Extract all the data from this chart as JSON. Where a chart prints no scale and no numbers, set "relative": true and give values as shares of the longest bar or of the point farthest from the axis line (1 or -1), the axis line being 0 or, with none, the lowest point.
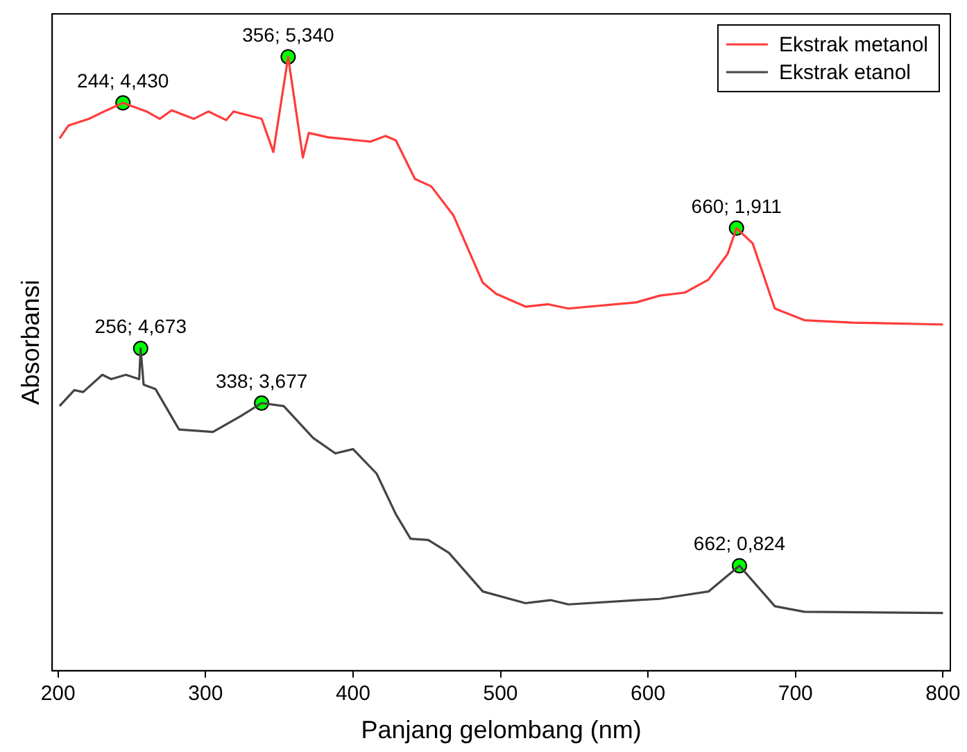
{
  "chart_data": {
    "type": "line",
    "xlabel": "Panjang gelombang (nm)",
    "ylabel": "Absorbansi",
    "relative": true,
    "xlim": [
      196,
      805
    ],
    "xticks": [
      200,
      300,
      400,
      500,
      600,
      700,
      800
    ],
    "grid": false,
    "legend": "top right",
    "marker": "none",
    "line_style": "solid",
    "series": [
      {
        "name": "Ekstrak metanol",
        "color": "#ff3b3b",
        "x": [
          201,
          207,
          221,
          233,
          244,
          260,
          269,
          277,
          292,
          302,
          314,
          319,
          338,
          346,
          356,
          366,
          370,
          383,
          403,
          412,
          422,
          429,
          442,
          453,
          468,
          488,
          497,
          517,
          532,
          546,
          592,
          608,
          625,
          641,
          654,
          660,
          671,
          686,
          706,
          739,
          800
        ],
        "values": [
          0.867,
          0.888,
          0.899,
          0.913,
          0.925,
          0.911,
          0.899,
          0.913,
          0.899,
          0.911,
          0.897,
          0.911,
          0.899,
          0.845,
          1.0,
          0.836,
          0.876,
          0.869,
          0.864,
          0.862,
          0.871,
          0.864,
          0.801,
          0.789,
          0.742,
          0.632,
          0.614,
          0.593,
          0.597,
          0.59,
          0.6,
          0.611,
          0.616,
          0.637,
          0.679,
          0.721,
          0.696,
          0.59,
          0.571,
          0.567,
          0.564
        ]
      },
      {
        "name": "Ekstrak etanol",
        "color": "#444444",
        "x": [
          201,
          211,
          217,
          230,
          236,
          246,
          255,
          256,
          258,
          266,
          282,
          305,
          324,
          338,
          353,
          373,
          388,
          400,
          416,
          429,
          439,
          451,
          465,
          488,
          517,
          534,
          546,
          592,
          608,
          641,
          662,
          686,
          706,
          800
        ],
        "values": [
          0.431,
          0.457,
          0.454,
          0.482,
          0.475,
          0.482,
          0.475,
          0.525,
          0.466,
          0.459,
          0.393,
          0.389,
          0.415,
          0.436,
          0.431,
          0.379,
          0.354,
          0.361,
          0.321,
          0.255,
          0.215,
          0.213,
          0.192,
          0.129,
          0.11,
          0.115,
          0.108,
          0.115,
          0.117,
          0.129,
          0.171,
          0.105,
          0.096,
          0.094
        ]
      },
      {
        "type": "scatter",
        "marker": "circle",
        "color": "#00ff00",
        "x": [
          244,
          356,
          660,
          256,
          338,
          662
        ],
        "values": [
          0.925,
          1.0,
          0.721,
          0.525,
          0.436,
          0.171
        ]
      }
    ],
    "annotations": [
      {
        "text": "244; 4,430",
        "x": 244,
        "y": 0.925
      },
      {
        "text": "356; 5,340",
        "x": 356,
        "y": 1.0
      },
      {
        "text": "660; 1,911",
        "x": 660,
        "y": 0.721
      },
      {
        "text": "256; 4,673",
        "x": 256,
        "y": 0.525
      },
      {
        "text": "338; 3,677",
        "x": 338,
        "y": 0.436
      },
      {
        "text": "662; 0,824",
        "x": 662,
        "y": 0.171
      }
    ]
  }
}
